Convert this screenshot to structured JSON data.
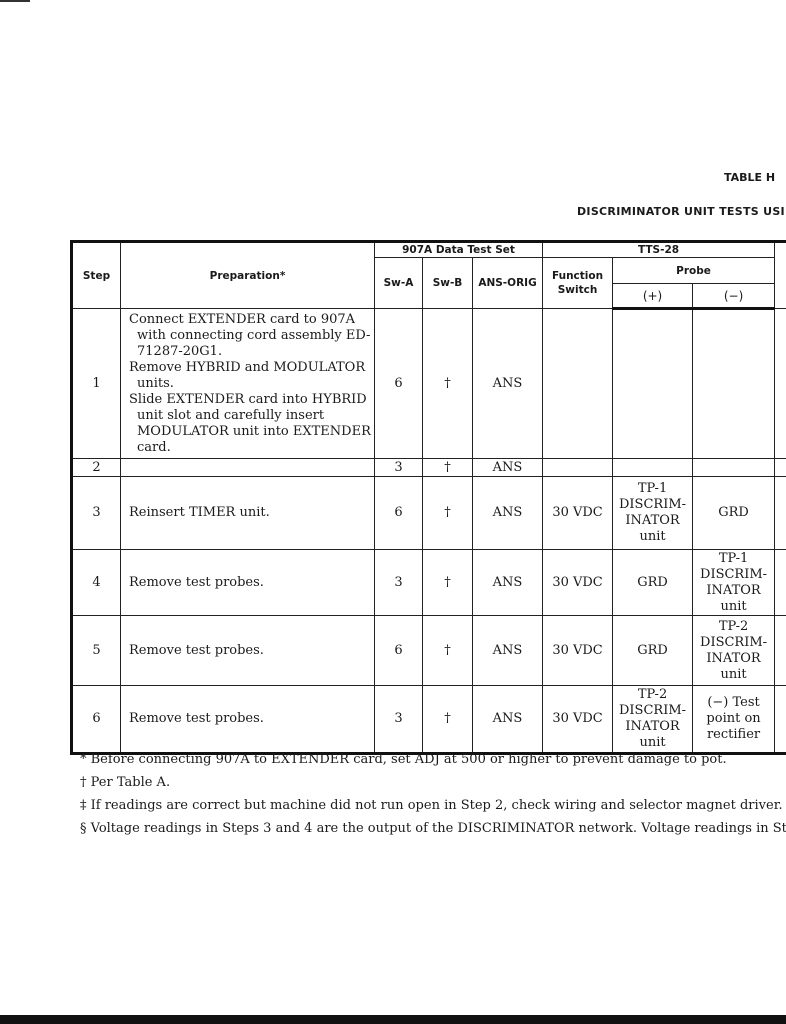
{
  "title": "TABLE H",
  "subtitle": "DISCRIMINATOR UNIT TESTS USING",
  "headers": {
    "step": "Step",
    "preparation": "Preparation*",
    "test_set": "907A Data Test Set",
    "sw_a": "Sw-A",
    "sw_b": "Sw-B",
    "ans_orig": "ANS-ORIG",
    "tts": "TTS-28",
    "function_switch": "Function Switch",
    "probe": "Probe",
    "probe_plus": "(+)",
    "probe_minus": "(−)"
  },
  "rows": [
    {
      "step": "1",
      "preparation": [
        "Connect EXTENDER card to 907A with connecting cord assembly ED-71287-20G1.",
        "Remove HYBRID and MODULATOR units.",
        "Slide EXTENDER card into HYBRID unit slot and carefully insert MODULATOR unit into EXTENDER card."
      ],
      "sw_a": "6",
      "sw_b": "†",
      "ans_orig": "ANS",
      "function": "",
      "probe_plus": "",
      "probe_minus": ""
    },
    {
      "step": "2",
      "preparation": [
        ""
      ],
      "sw_a": "3",
      "sw_b": "†",
      "ans_orig": "ANS",
      "function": "",
      "probe_plus": "",
      "probe_minus": ""
    },
    {
      "step": "3",
      "preparation": [
        "Reinsert TIMER unit."
      ],
      "sw_a": "6",
      "sw_b": "†",
      "ans_orig": "ANS",
      "function": "30 VDC",
      "probe_plus": "TP-1 DISCRIM-INATOR unit",
      "probe_minus": "GRD"
    },
    {
      "step": "4",
      "preparation": [
        "Remove test probes."
      ],
      "sw_a": "3",
      "sw_b": "†",
      "ans_orig": "ANS",
      "function": "30 VDC",
      "probe_plus": "GRD",
      "probe_minus": "TP-1 DISCRIM-INATOR unit"
    },
    {
      "step": "5",
      "preparation": [
        "Remove test probes."
      ],
      "sw_a": "6",
      "sw_b": "†",
      "ans_orig": "ANS",
      "function": "30 VDC",
      "probe_plus": "GRD",
      "probe_minus": "TP-2 DISCRIM-INATOR unit"
    },
    {
      "step": "6",
      "preparation": [
        "Remove test probes."
      ],
      "sw_a": "3",
      "sw_b": "†",
      "ans_orig": "ANS",
      "function": "30 VDC",
      "probe_plus": "TP-2 DISCRIM-INATOR unit",
      "probe_minus": "(−) Test point on rectifier"
    }
  ],
  "footnotes": [
    "* Before connecting 907A to EXTENDER card, set ADJ at 500 or higher to prevent damage to pot.",
    "† Per Table A.",
    "‡ If readings are correct but machine did not run open in Step 2, check wiring and selector magnet driver.",
    "§ Voltage readings in Steps 3 and 4 are the output of the DISCRIMINATOR network. Voltage readings in St"
  ]
}
